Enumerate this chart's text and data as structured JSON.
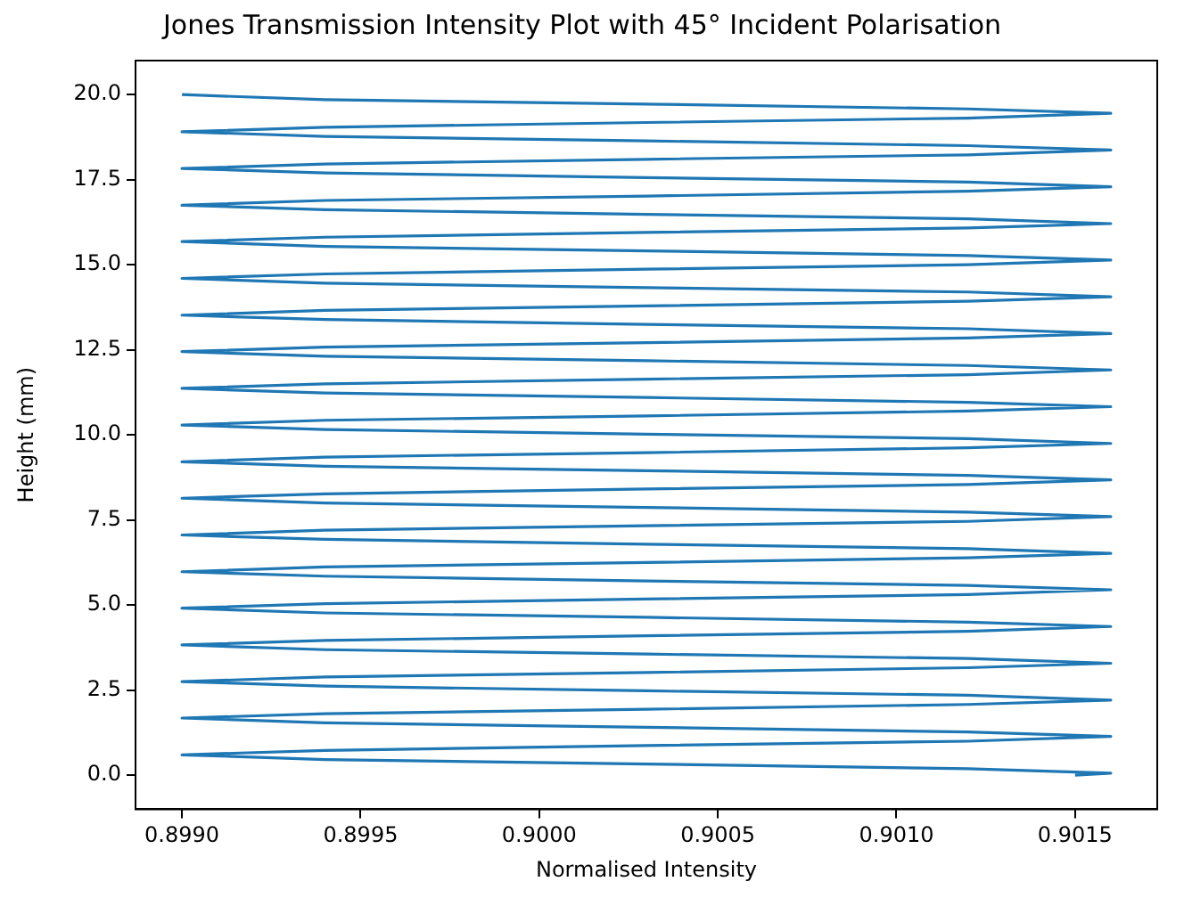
{
  "chart_data": {
    "type": "line",
    "title": "Jones Transmission Intensity Plot with 45° Incident Polarisation",
    "xlabel": "Normalised Intensity",
    "ylabel": "Height (mm)",
    "color": "#1f77b4",
    "grid": false,
    "xlim": [
      0.89887,
      0.90173
    ],
    "ylim": [
      -1,
      21
    ],
    "xticks": [
      {
        "value": 0.899,
        "label": "0.8990"
      },
      {
        "value": 0.8995,
        "label": "0.8995"
      },
      {
        "value": 0.9,
        "label": "0.9000"
      },
      {
        "value": 0.9005,
        "label": "0.9005"
      },
      {
        "value": 0.901,
        "label": "0.9010"
      },
      {
        "value": 0.9015,
        "label": "0.9015"
      }
    ],
    "yticks": [
      {
        "value": 0,
        "label": "0.0"
      },
      {
        "value": 2.5,
        "label": "2.5"
      },
      {
        "value": 5,
        "label": "5.0"
      },
      {
        "value": 7.5,
        "label": "7.5"
      },
      {
        "value": 10,
        "label": "10.0"
      },
      {
        "value": 12.5,
        "label": "12.5"
      },
      {
        "value": 15,
        "label": "15.0"
      },
      {
        "value": 17.5,
        "label": "17.5"
      },
      {
        "value": 20,
        "label": "20.0"
      }
    ],
    "x": [
      0.9015,
      0.9016,
      0.9012,
      0.9003,
      0.8994,
      0.899,
      0.8994,
      0.9003,
      0.9012,
      0.9016,
      0.9012,
      0.9003,
      0.8994,
      0.899,
      0.8994,
      0.9003,
      0.9012,
      0.9016,
      0.9012,
      0.9003,
      0.8994,
      0.899,
      0.8994,
      0.9003,
      0.9012,
      0.9016,
      0.9012,
      0.9003,
      0.8994,
      0.899,
      0.8994,
      0.9003,
      0.9012,
      0.9016,
      0.9012,
      0.9003,
      0.8994,
      0.899,
      0.8994,
      0.9003,
      0.9012,
      0.9016,
      0.9012,
      0.9003,
      0.8994,
      0.899,
      0.8994,
      0.9003,
      0.9012,
      0.9016,
      0.9012,
      0.9003,
      0.8994,
      0.899,
      0.8994,
      0.9003,
      0.9012,
      0.9016,
      0.9012,
      0.9003,
      0.8994,
      0.899,
      0.8994,
      0.9003,
      0.9012,
      0.9016,
      0.9012,
      0.9003,
      0.8994,
      0.899,
      0.8994,
      0.9003,
      0.9012,
      0.9016,
      0.9012,
      0.9003,
      0.8994,
      0.899,
      0.8994,
      0.9003,
      0.9012,
      0.9016,
      0.9012,
      0.9003,
      0.8994,
      0.899,
      0.8994,
      0.9003,
      0.9012,
      0.9016,
      0.9012,
      0.9003,
      0.8994,
      0.899,
      0.8994,
      0.9003,
      0.9012,
      0.9016,
      0.9012,
      0.9003,
      0.8994,
      0.899,
      0.8994,
      0.9003,
      0.9012,
      0.9016,
      0.9012,
      0.9003,
      0.8994,
      0.899,
      0.8994,
      0.9003,
      0.9012,
      0.9016,
      0.9012,
      0.9003,
      0.8994,
      0.899,
      0.8994,
      0.9003,
      0.9012,
      0.9016,
      0.9012,
      0.9003,
      0.8994,
      0.899,
      0.8994,
      0.9003,
      0.9012,
      0.9016,
      0.9012,
      0.9003,
      0.8994,
      0.899,
      0.8994,
      0.9003,
      0.9012,
      0.9016,
      0.9012,
      0.9003,
      0.8994,
      0.899,
      0.8994,
      0.9003,
      0.9012,
      0.9016,
      0.9012,
      0.9003,
      0.8994,
      0.899
    ],
    "values": [
      0,
      0.06,
      0.19,
      0.33,
      0.46,
      0.6,
      0.73,
      0.87,
      1,
      1.14,
      1.27,
      1.41,
      1.54,
      1.68,
      1.81,
      1.94,
      2.08,
      2.21,
      2.35,
      2.48,
      2.62,
      2.75,
      2.89,
      3.02,
      3.16,
      3.29,
      3.43,
      3.56,
      3.69,
      3.83,
      3.96,
      4.1,
      4.23,
      4.37,
      4.5,
      4.64,
      4.77,
      4.91,
      5.04,
      5.18,
      5.31,
      5.45,
      5.58,
      5.71,
      5.85,
      5.98,
      6.12,
      6.25,
      6.39,
      6.52,
      6.66,
      6.79,
      6.93,
      7.06,
      7.2,
      7.33,
      7.46,
      7.6,
      7.73,
      7.87,
      8,
      8.14,
      8.27,
      8.41,
      8.54,
      8.68,
      8.81,
      8.95,
      9.08,
      9.21,
      9.35,
      9.48,
      9.62,
      9.75,
      9.89,
      10.02,
      10.16,
      10.29,
      10.43,
      10.56,
      10.7,
      10.83,
      10.96,
      11.1,
      11.23,
      11.37,
      11.5,
      11.64,
      11.77,
      11.91,
      12.04,
      12.18,
      12.31,
      12.45,
      12.58,
      12.71,
      12.85,
      12.98,
      13.12,
      13.25,
      13.39,
      13.52,
      13.66,
      13.79,
      13.93,
      14.06,
      14.2,
      14.33,
      14.46,
      14.6,
      14.73,
      14.87,
      15,
      15.14,
      15.27,
      15.41,
      15.54,
      15.68,
      15.81,
      15.95,
      16.08,
      16.21,
      16.35,
      16.48,
      16.62,
      16.75,
      16.89,
      17.02,
      17.16,
      17.29,
      17.43,
      17.56,
      17.7,
      17.83,
      17.96,
      18.1,
      18.23,
      18.37,
      18.5,
      18.64,
      18.77,
      18.91,
      19.04,
      19.18,
      19.31,
      19.45,
      19.58,
      19.72,
      19.85,
      20
    ]
  }
}
